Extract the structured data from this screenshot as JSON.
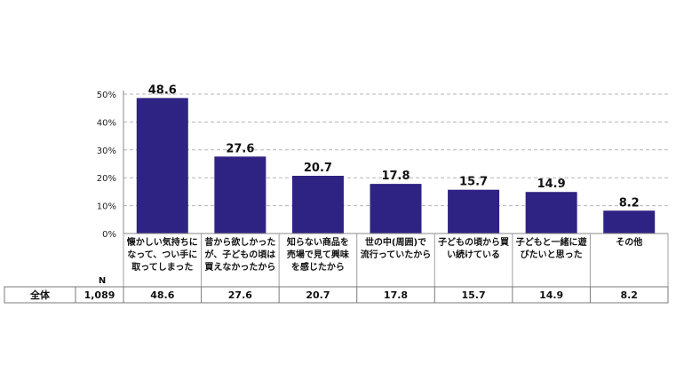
{
  "chart_data": {
    "type": "bar",
    "categories": [
      [
        "懐かしい気持ちに",
        "なって、つい手に",
        "取ってしまった"
      ],
      [
        "昔から欲しかった",
        "が、子どもの頃は",
        "買えなかったから"
      ],
      [
        "知らない商品を",
        "売場で見て興味",
        "を感じたから"
      ],
      [
        "世の中(周囲)で",
        "流行っていたから"
      ],
      [
        "子どもの頃から買",
        "い続けている"
      ],
      [
        "子どもと一緒に遊",
        "びたいと思った"
      ],
      [
        "その他"
      ]
    ],
    "values": [
      48.6,
      27.6,
      20.7,
      17.8,
      15.7,
      14.9,
      8.2
    ],
    "ylim": [
      0,
      50
    ],
    "yticks": [
      0,
      10,
      20,
      30,
      40,
      50
    ],
    "ytick_labels": [
      "0%",
      "10%",
      "20%",
      "30%",
      "40%",
      "50%"
    ],
    "grid": true,
    "bar_color": "#2e2383",
    "table": {
      "n_header": "N",
      "row_label": "全体",
      "n_value": "1,089",
      "values": [
        "48.6",
        "27.6",
        "20.7",
        "17.8",
        "15.7",
        "14.9",
        "8.2"
      ]
    }
  }
}
